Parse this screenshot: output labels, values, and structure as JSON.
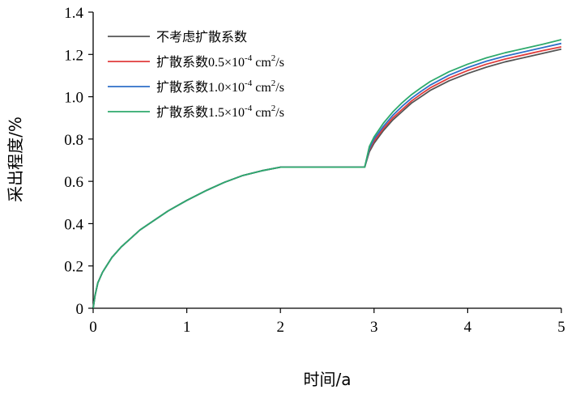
{
  "chart_data": {
    "type": "line",
    "title": "",
    "xlabel": "时间/a",
    "ylabel": "采出程度/%",
    "xlim": [
      0,
      5
    ],
    "ylim": [
      0,
      1.4
    ],
    "xticks": [
      0,
      1,
      2,
      3,
      4,
      5
    ],
    "yticks": [
      0,
      0.2,
      0.4,
      0.6,
      0.8,
      1.0,
      1.2,
      1.4
    ],
    "xtick_labels": [
      "0",
      "1",
      "2",
      "3",
      "4",
      "5"
    ],
    "ytick_labels": [
      "0",
      "0.2",
      "0.4",
      "0.6",
      "0.8",
      "1.0",
      "1.2",
      "1.4"
    ],
    "grid": false,
    "legend_position": "top-left",
    "series": [
      {
        "name": "不考虑扩散系数",
        "color": "#555555",
        "x": [
          0,
          0.02,
          0.05,
          0.1,
          0.2,
          0.3,
          0.4,
          0.5,
          0.6,
          0.8,
          1.0,
          1.2,
          1.4,
          1.6,
          1.8,
          2.0,
          2.4,
          2.9,
          2.95,
          3.0,
          3.1,
          3.2,
          3.3,
          3.4,
          3.5,
          3.6,
          3.8,
          4.0,
          4.2,
          4.4,
          4.6,
          4.8,
          5.0
        ],
        "y": [
          0,
          0.06,
          0.12,
          0.17,
          0.24,
          0.29,
          0.33,
          0.37,
          0.4,
          0.46,
          0.51,
          0.555,
          0.595,
          0.628,
          0.65,
          0.667,
          0.667,
          0.667,
          0.74,
          0.78,
          0.84,
          0.89,
          0.93,
          0.97,
          1.0,
          1.03,
          1.075,
          1.11,
          1.14,
          1.165,
          1.185,
          1.205,
          1.225
        ]
      },
      {
        "name": "扩散系数0.5×10-4 cm2/s",
        "name_parts": [
          "扩散系数",
          "0.5×10",
          "-4",
          " cm",
          "2",
          "/s"
        ],
        "color": "#e03c3c",
        "x": [
          0,
          0.02,
          0.05,
          0.1,
          0.2,
          0.3,
          0.4,
          0.5,
          0.6,
          0.8,
          1.0,
          1.2,
          1.4,
          1.6,
          1.8,
          2.0,
          2.4,
          2.9,
          2.95,
          3.0,
          3.1,
          3.2,
          3.3,
          3.4,
          3.5,
          3.6,
          3.8,
          4.0,
          4.2,
          4.4,
          4.6,
          4.8,
          5.0
        ],
        "y": [
          0,
          0.06,
          0.12,
          0.17,
          0.24,
          0.29,
          0.33,
          0.37,
          0.4,
          0.46,
          0.51,
          0.555,
          0.595,
          0.628,
          0.65,
          0.667,
          0.667,
          0.667,
          0.75,
          0.79,
          0.85,
          0.9,
          0.94,
          0.98,
          1.012,
          1.042,
          1.088,
          1.124,
          1.154,
          1.178,
          1.198,
          1.218,
          1.236
        ]
      },
      {
        "name": "扩散系数1.0×10-4 cm2/s",
        "name_parts": [
          "扩散系数",
          "1.0×10",
          "-4",
          " cm",
          "2",
          "/s"
        ],
        "color": "#2f6fc8",
        "x": [
          0,
          0.02,
          0.05,
          0.1,
          0.2,
          0.3,
          0.4,
          0.5,
          0.6,
          0.8,
          1.0,
          1.2,
          1.4,
          1.6,
          1.8,
          2.0,
          2.4,
          2.9,
          2.95,
          3.0,
          3.1,
          3.2,
          3.3,
          3.4,
          3.5,
          3.6,
          3.8,
          4.0,
          4.2,
          4.4,
          4.6,
          4.8,
          5.0
        ],
        "y": [
          0,
          0.06,
          0.12,
          0.17,
          0.24,
          0.29,
          0.33,
          0.37,
          0.4,
          0.46,
          0.51,
          0.555,
          0.595,
          0.628,
          0.65,
          0.667,
          0.667,
          0.667,
          0.755,
          0.8,
          0.86,
          0.912,
          0.955,
          0.993,
          1.025,
          1.055,
          1.102,
          1.138,
          1.168,
          1.192,
          1.212,
          1.232,
          1.252
        ]
      },
      {
        "name": "扩散系数1.5×10-4 cm2/s",
        "name_parts": [
          "扩散系数",
          "1.5×10",
          "-4",
          " cm",
          "2",
          "/s"
        ],
        "color": "#2eaa6c",
        "x": [
          0,
          0.02,
          0.05,
          0.1,
          0.2,
          0.3,
          0.4,
          0.5,
          0.6,
          0.8,
          1.0,
          1.2,
          1.4,
          1.6,
          1.8,
          2.0,
          2.4,
          2.9,
          2.95,
          3.0,
          3.1,
          3.2,
          3.3,
          3.4,
          3.5,
          3.6,
          3.8,
          4.0,
          4.2,
          4.4,
          4.6,
          4.8,
          5.0
        ],
        "y": [
          0,
          0.06,
          0.12,
          0.17,
          0.24,
          0.29,
          0.33,
          0.37,
          0.4,
          0.46,
          0.51,
          0.555,
          0.595,
          0.628,
          0.65,
          0.667,
          0.667,
          0.667,
          0.765,
          0.81,
          0.875,
          0.928,
          0.972,
          1.01,
          1.042,
          1.072,
          1.118,
          1.154,
          1.184,
          1.208,
          1.228,
          1.248,
          1.27
        ]
      }
    ]
  }
}
